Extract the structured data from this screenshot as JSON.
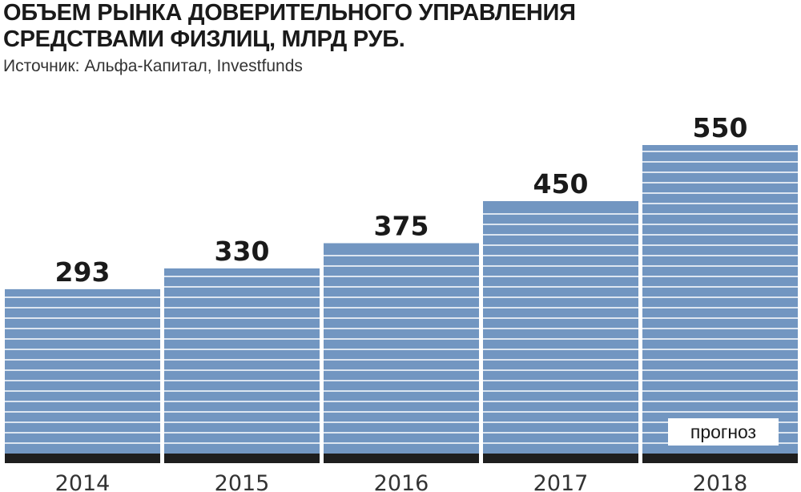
{
  "header": {
    "title_line1": "ОБЪЕМ РЫНКА ДОВЕРИТЕЛЬНОГО УПРАВЛЕНИЯ",
    "title_line2": "СРЕДСТВАМИ ФИЗЛИЦ, МЛРД РУБ.",
    "source": "Источник: Альфа-Капитал, Investfunds"
  },
  "colors": {
    "bar": "#7296c1",
    "stripe": "#ffffff",
    "base": "#1e1e1e",
    "text": "#1a1a1a"
  },
  "chart_data": {
    "type": "bar",
    "title": "ОБЪЕМ РЫНКА ДОВЕРИТЕЛЬНОГО УПРАВЛЕНИЯ СРЕДСТВАМИ ФИЗЛИЦ, МЛРД РУБ.",
    "categories": [
      "2014",
      "2015",
      "2016",
      "2017",
      "2018"
    ],
    "values": [
      293,
      330,
      375,
      450,
      550
    ],
    "xlabel": "",
    "ylabel": "",
    "ylim": [
      0,
      550
    ],
    "grid": false,
    "legend": "none",
    "annotation": {
      "category": "2018",
      "text": "прогноз"
    }
  }
}
